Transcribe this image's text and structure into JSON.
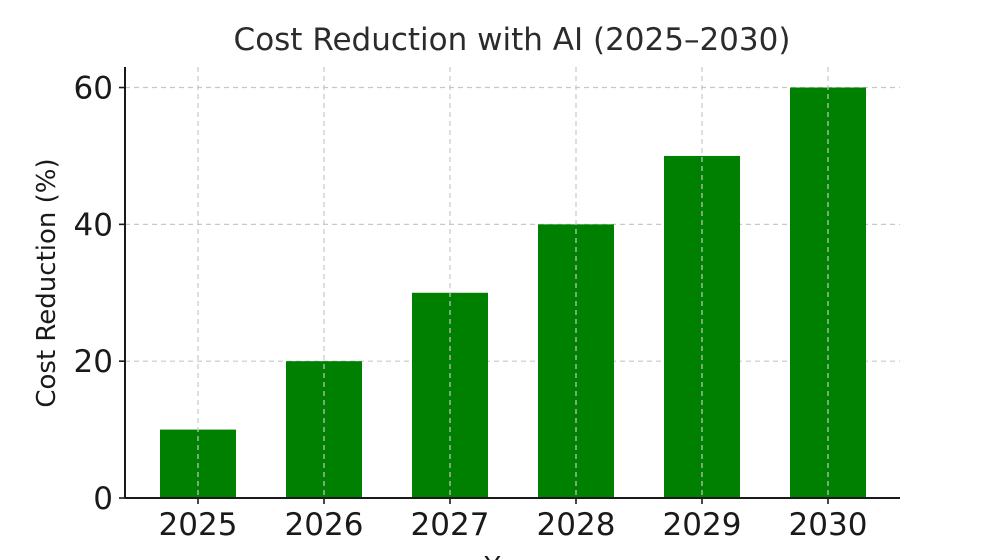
{
  "chart_data": {
    "type": "bar",
    "title": "Cost Reduction with AI (2025–2030)",
    "xlabel": "Year",
    "ylabel": "Cost Reduction (%)",
    "categories": [
      "2025",
      "2026",
      "2027",
      "2028",
      "2029",
      "2030"
    ],
    "values": [
      10,
      20,
      30,
      40,
      50,
      60
    ],
    "ylim": [
      0,
      63
    ],
    "yticks": [
      0,
      20,
      40,
      60
    ],
    "bar_color": "#008000",
    "grid": true,
    "grid_style": "dashed"
  }
}
